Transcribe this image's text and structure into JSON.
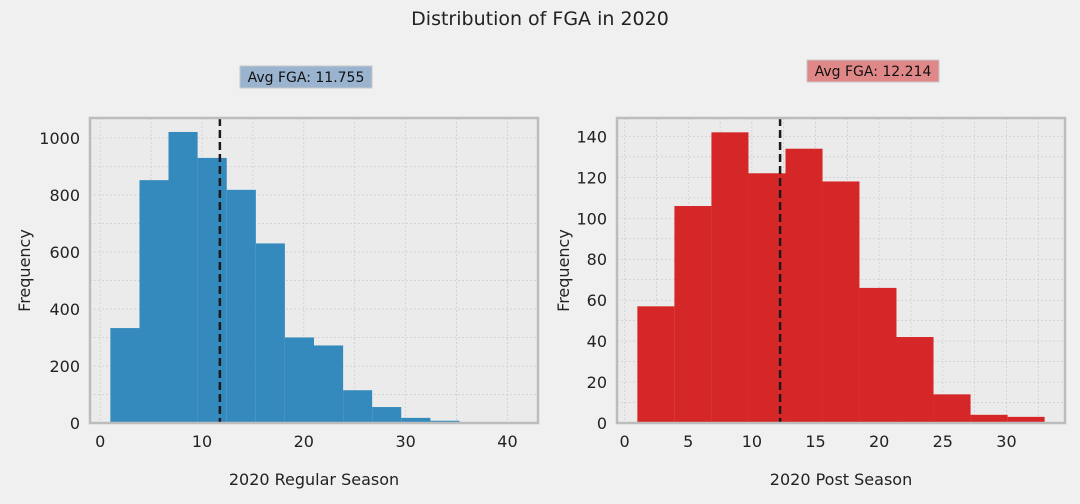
{
  "figure": {
    "title": "Distribution of FGA in 2020",
    "colors": {
      "background": "#f0f0f0",
      "plot_background": "#ebebeb",
      "frame": "#bcbcbc",
      "grid": "#cbcbcb",
      "avg_line": "#1a1a1a",
      "regular_bar": "#348abd",
      "post_bar": "#d62728",
      "regular_annotation_bg": "#9ab4d0",
      "post_annotation_bg": "#e08888"
    }
  },
  "chart_data": [
    {
      "type": "bar",
      "subtype": "histogram",
      "xlabel": "2020 Regular Season",
      "ylabel": "Frequency",
      "xlim": [
        -1,
        43
      ],
      "ylim": [
        0,
        1070
      ],
      "xticks": [
        0,
        10,
        20,
        30,
        40
      ],
      "yticks": [
        0,
        200,
        400,
        600,
        800,
        1000
      ],
      "grid": true,
      "bin_edges": [
        1,
        3.86,
        6.71,
        9.57,
        12.43,
        15.29,
        18.14,
        21,
        23.86,
        26.71,
        29.57,
        32.43,
        35.29,
        38.14,
        41
      ],
      "values": [
        333,
        852,
        1021,
        930,
        818,
        630,
        300,
        272,
        115,
        56,
        18,
        8,
        2,
        1
      ],
      "average": 11.755,
      "annotation": "Avg FGA: 11.755"
    },
    {
      "type": "bar",
      "subtype": "histogram",
      "xlabel": "2020 Post Season",
      "ylabel": "Frequency",
      "xlim": [
        -0.6,
        34.6
      ],
      "ylim": [
        0,
        149
      ],
      "xticks": [
        0,
        5,
        10,
        15,
        20,
        25,
        30
      ],
      "yticks": [
        0,
        20,
        40,
        60,
        80,
        100,
        120,
        140
      ],
      "grid": true,
      "bin_edges": [
        1,
        3.91,
        6.82,
        9.73,
        12.64,
        15.55,
        18.45,
        21.36,
        24.27,
        27.18,
        30.09,
        33
      ],
      "values": [
        57,
        106,
        142,
        122,
        134,
        118,
        66,
        42,
        14,
        4,
        3
      ],
      "average": 12.214,
      "annotation": "Avg FGA: 12.214"
    }
  ]
}
